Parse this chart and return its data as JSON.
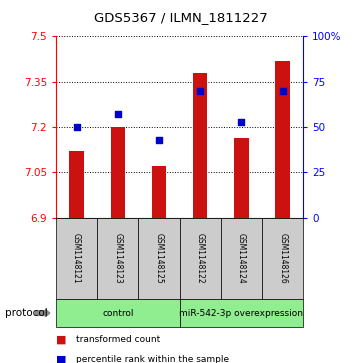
{
  "title": "GDS5367 / ILMN_1811227",
  "samples": [
    "GSM1148121",
    "GSM1148123",
    "GSM1148125",
    "GSM1148122",
    "GSM1148124",
    "GSM1148126"
  ],
  "transformed_counts": [
    7.12,
    7.2,
    7.07,
    7.38,
    7.165,
    7.42
  ],
  "percentile_ranks": [
    50,
    57,
    43,
    70,
    53,
    70
  ],
  "ylim_left": [
    6.9,
    7.5
  ],
  "ylim_right": [
    0,
    100
  ],
  "yticks_left": [
    6.9,
    7.05,
    7.2,
    7.35,
    7.5
  ],
  "yticks_right": [
    0,
    25,
    50,
    75,
    100
  ],
  "ytick_labels_left": [
    "6.9",
    "7.05",
    "7.2",
    "7.35",
    "7.5"
  ],
  "ytick_labels_right": [
    "0",
    "25",
    "50",
    "75",
    "100%"
  ],
  "bar_color": "#CC1111",
  "dot_color": "#0000CC",
  "bar_bottom": 6.9,
  "bar_width": 0.35,
  "protocol_label": "protocol",
  "group_labels": [
    "control",
    "miR-542-3p overexpression"
  ],
  "group_starts": [
    0,
    3
  ],
  "group_ends": [
    3,
    6
  ],
  "group_color": "#90EE90",
  "sample_box_color": "#CCCCCC",
  "legend_items": [
    {
      "color": "#CC1111",
      "label": "transformed count"
    },
    {
      "color": "#0000CC",
      "label": "percentile rank within the sample"
    }
  ]
}
